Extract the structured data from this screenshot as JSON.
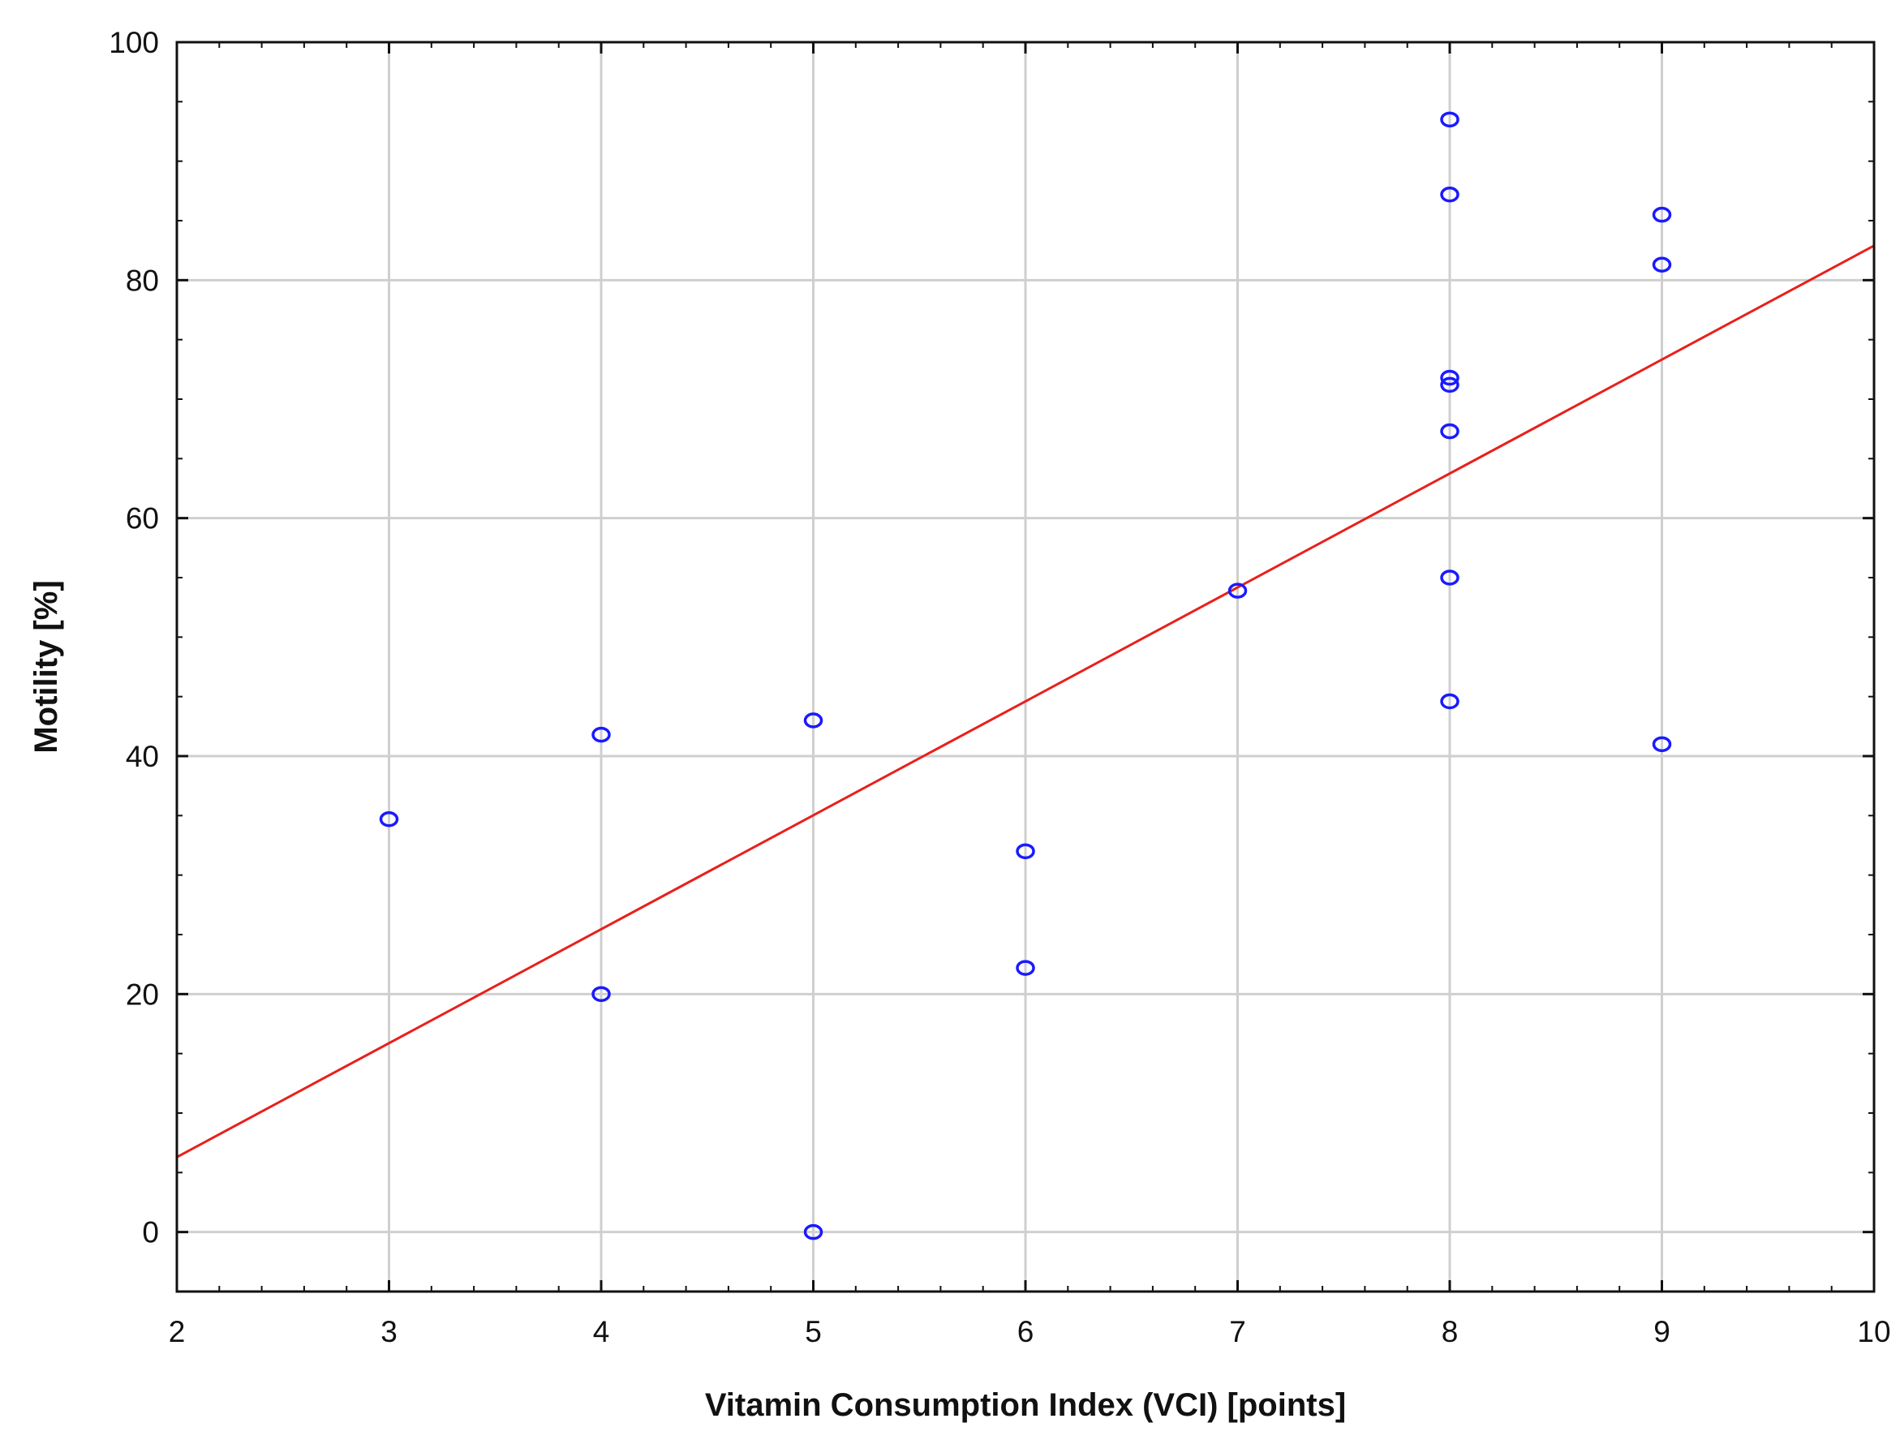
{
  "chart_data": {
    "type": "scatter",
    "title": "",
    "xlabel": "Vitamin Consumption Index (VCI) [points]",
    "ylabel": "Motility [%]",
    "xlim": [
      2,
      10
    ],
    "ylim": [
      -5,
      100
    ],
    "x_ticks": [
      2,
      3,
      4,
      5,
      6,
      7,
      8,
      9,
      10
    ],
    "y_ticks": [
      0,
      20,
      40,
      60,
      80,
      100
    ],
    "grid": true,
    "legend": "none",
    "points": [
      {
        "x": 3,
        "y": 34.7
      },
      {
        "x": 4,
        "y": 41.8
      },
      {
        "x": 4,
        "y": 20
      },
      {
        "x": 5,
        "y": 43
      },
      {
        "x": 5,
        "y": 0
      },
      {
        "x": 6,
        "y": 32
      },
      {
        "x": 6,
        "y": 22.2
      },
      {
        "x": 7,
        "y": 53.9
      },
      {
        "x": 8,
        "y": 93.5
      },
      {
        "x": 8,
        "y": 87.2
      },
      {
        "x": 8,
        "y": 71.8
      },
      {
        "x": 8,
        "y": 71.2
      },
      {
        "x": 8,
        "y": 67.3
      },
      {
        "x": 8,
        "y": 55
      },
      {
        "x": 8,
        "y": 44.6
      },
      {
        "x": 9,
        "y": 85.5
      },
      {
        "x": 9,
        "y": 81.3
      },
      {
        "x": 9,
        "y": 41
      }
    ],
    "fit_line": {
      "x": [
        2,
        10
      ],
      "y": [
        6.3,
        82.9
      ]
    },
    "colors": {
      "points": "#1a1aff",
      "fit_line": "#e8201c",
      "grid": "#cfcfcf",
      "axes": "#111111"
    }
  }
}
